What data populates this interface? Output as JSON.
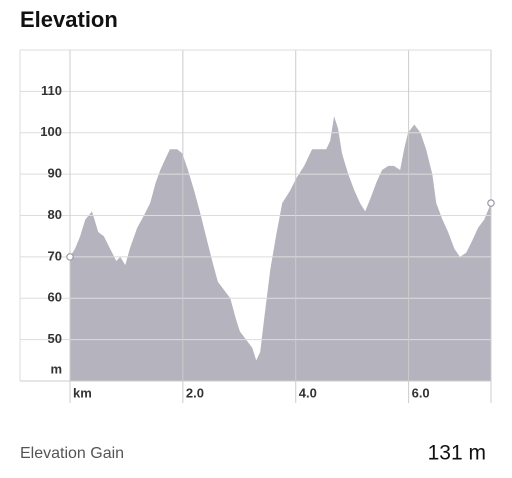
{
  "header": {
    "title": "Elevation"
  },
  "chart_data": {
    "type": "area",
    "x_label": "km",
    "y_label": "m",
    "x": [
      0,
      0.09,
      0.18,
      0.27,
      0.39,
      0.5,
      0.6,
      0.71,
      0.82,
      0.89,
      0.98,
      1.06,
      1.19,
      1.31,
      1.42,
      1.52,
      1.6,
      1.7,
      1.77,
      1.9,
      1.99,
      2.09,
      2.2,
      2.3,
      2.41,
      2.52,
      2.62,
      2.73,
      2.84,
      2.94,
      3.01,
      3.12,
      3.23,
      3.3,
      3.37,
      3.44,
      3.55,
      3.65,
      3.76,
      3.9,
      4.01,
      4.15,
      4.29,
      4.43,
      4.54,
      4.61,
      4.68,
      4.75,
      4.82,
      4.93,
      5.04,
      5.14,
      5.23,
      5.32,
      5.43,
      5.53,
      5.64,
      5.74,
      5.85,
      5.92,
      5.99,
      6.1,
      6.21,
      6.31,
      6.42,
      6.49,
      6.6,
      6.7,
      6.81,
      6.91,
      7.02,
      7.13,
      7.23,
      7.34,
      7.46
    ],
    "values": [
      70,
      72,
      75,
      79,
      81,
      76,
      75,
      72,
      69,
      70,
      68,
      72,
      77,
      80,
      83,
      88,
      91,
      94,
      96,
      96,
      95,
      91,
      86,
      81,
      75,
      69,
      64,
      62,
      60,
      55,
      52,
      50,
      48,
      45,
      47,
      55,
      67,
      75,
      83,
      86,
      89,
      92,
      96,
      96,
      96,
      98,
      104,
      101,
      95,
      90,
      86,
      83,
      81,
      84,
      88,
      91,
      92,
      92,
      91,
      96,
      100,
      102,
      100,
      96,
      90,
      83,
      79,
      76,
      72,
      70,
      71,
      74,
      77,
      79,
      83
    ],
    "color": "#b4b3be",
    "xlim": [
      0,
      7.46
    ],
    "ylim": [
      40,
      120
    ],
    "xticks": [
      {
        "value": 2,
        "label": "2.0"
      },
      {
        "value": 4,
        "label": "4.0"
      },
      {
        "value": 6,
        "label": "6.0"
      }
    ],
    "yticks": [
      50,
      60,
      70,
      80,
      90,
      100,
      110
    ],
    "grid": true
  },
  "summary": {
    "label": "Elevation Gain",
    "value": "131 m"
  }
}
